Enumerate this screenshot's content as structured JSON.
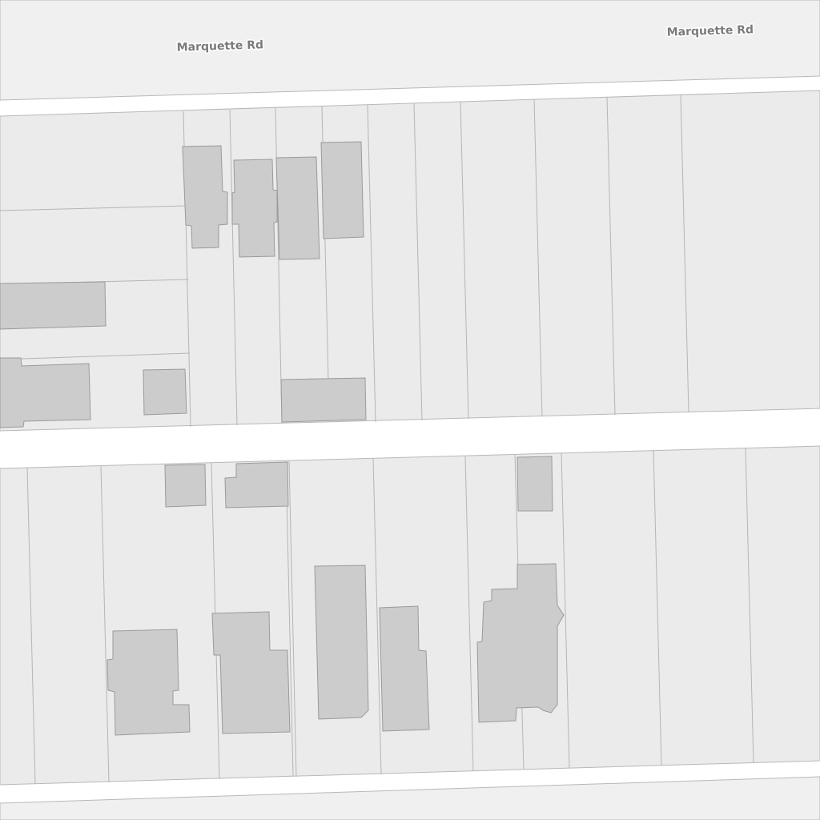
{
  "labels": [
    {
      "text": "Marquette Rd"
    },
    {
      "text": "Marquette Rd"
    }
  ]
}
